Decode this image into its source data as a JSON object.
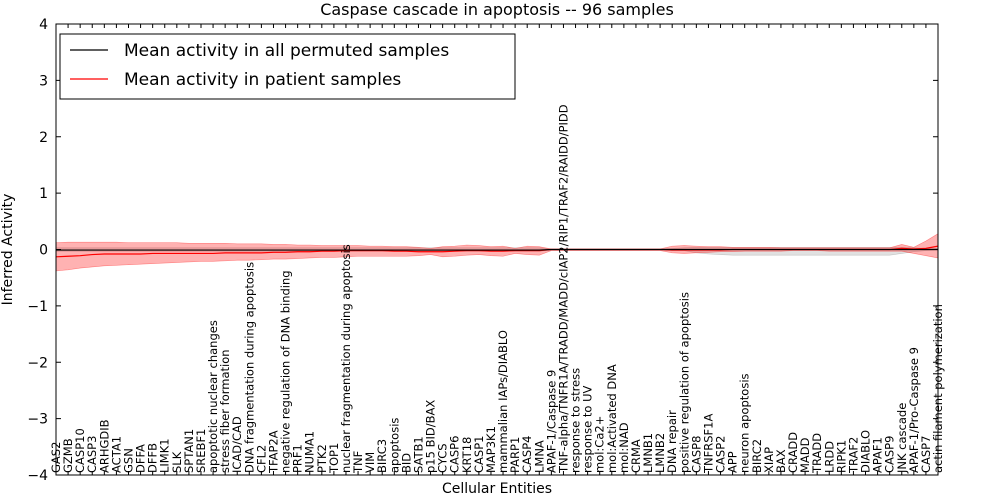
{
  "chart_data": {
    "type": "line",
    "title": "Caspase cascade in apoptosis -- 96 samples",
    "xlabel": "Cellular Entities",
    "ylabel": "Inferred Activity",
    "ylim": [
      -4,
      4
    ],
    "yticks": [
      -4,
      -3,
      -2,
      -1,
      0,
      1,
      2,
      3,
      4
    ],
    "ytick_labels": [
      "−4",
      "−3",
      "−2",
      "−1",
      "0",
      "1",
      "2",
      "3",
      "4"
    ],
    "grid": false,
    "legend_position": "top-left",
    "categories": [
      "GAS2",
      "GZMB",
      "CASP10",
      "CASP3",
      "ARHGDIB",
      "ACTA1",
      "GSN",
      "DFFA",
      "DFFB",
      "LIMK1",
      "SLK",
      "SPTAN1",
      "SREBF1",
      "apoptotic nuclear changes",
      "stress fiber formation",
      "ICAD/CAD",
      "DNA fragmentation during apoptosis",
      "CFL2",
      "TFAP2A",
      "negative regulation of DNA binding",
      "PRF1",
      "NUMA1",
      "PTK2",
      "TOP1",
      "nuclear fragmentation during apoptosis",
      "TNF",
      "VIM",
      "BIRC3",
      "apoptosis",
      "BID",
      "SATB1",
      "p15 BID/BAX",
      "CYCS",
      "CASP6",
      "KRT18",
      "CASP1",
      "MAP3K1",
      "mammalian IAPs/DIABLO",
      "PARP1",
      "CASP4",
      "LMNA",
      "APAF-1/Caspase 9",
      "TNF-alpha/TNFR1A/TRADD/MADD/cIAP2/RIP1/TRAF2/RAIDD/PIDD",
      "response to stress",
      "response to UV",
      "mol:Ca2+",
      "mol:Activated DNA",
      "mol:NAD",
      "CRMA",
      "LMNB1",
      "LMNB2",
      "DNA repair",
      "positive regulation of apoptosis",
      "CASP8",
      "TNFRSF1A",
      "CASP2",
      "APP",
      "neuron apoptosis",
      "BIRC2",
      "XIAP",
      "BAX",
      "CRADD",
      "MADD",
      "TRADD",
      "LRDD",
      "RIPK1",
      "TRAF2",
      "DIABLO",
      "APAF1",
      "CASP9",
      "JNK cascade",
      "APAF-1/Pro-Caspase 9",
      "CASP7",
      "actin filament polymerization"
    ],
    "series": [
      {
        "name": "Mean activity in all permuted samples",
        "color": "#000000",
        "values": [
          -0.01,
          -0.01,
          -0.01,
          -0.01,
          -0.01,
          -0.01,
          -0.01,
          -0.01,
          -0.01,
          -0.01,
          -0.01,
          -0.01,
          -0.01,
          -0.01,
          -0.01,
          -0.01,
          -0.01,
          -0.01,
          -0.01,
          -0.01,
          -0.01,
          -0.01,
          -0.01,
          -0.01,
          -0.01,
          -0.01,
          -0.01,
          -0.01,
          -0.01,
          -0.01,
          -0.01,
          -0.01,
          -0.01,
          -0.01,
          -0.01,
          -0.01,
          -0.01,
          -0.01,
          -0.01,
          -0.01,
          -0.01,
          0,
          0,
          0,
          0,
          0,
          0,
          0,
          0,
          0,
          0,
          0,
          0,
          0,
          0,
          0,
          0,
          0,
          0,
          0,
          0,
          0,
          0,
          0,
          0,
          0,
          0,
          0,
          0,
          0,
          0,
          0,
          0,
          0
        ],
        "lower": [
          -0.03,
          -0.03,
          -0.03,
          -0.03,
          -0.03,
          -0.03,
          -0.03,
          -0.03,
          -0.03,
          -0.03,
          -0.03,
          -0.03,
          -0.03,
          -0.03,
          -0.03,
          -0.03,
          -0.03,
          -0.03,
          -0.03,
          -0.03,
          -0.03,
          -0.03,
          -0.03,
          -0.03,
          -0.03,
          -0.03,
          -0.03,
          -0.03,
          -0.03,
          -0.03,
          -0.03,
          -0.03,
          -0.03,
          -0.03,
          -0.03,
          -0.03,
          -0.03,
          -0.03,
          -0.03,
          -0.03,
          -0.03,
          -0.01,
          -0.01,
          -0.01,
          -0.01,
          -0.01,
          -0.01,
          -0.01,
          -0.01,
          -0.01,
          -0.01,
          -0.02,
          -0.02,
          -0.06,
          -0.08,
          -0.09,
          -0.1,
          -0.1,
          -0.1,
          -0.1,
          -0.1,
          -0.1,
          -0.1,
          -0.1,
          -0.1,
          -0.1,
          -0.1,
          -0.1,
          -0.1,
          -0.1,
          -0.07,
          -0.04,
          -0.02,
          -0.01
        ],
        "upper": [
          0.03,
          0.03,
          0.03,
          0.03,
          0.03,
          0.03,
          0.03,
          0.03,
          0.03,
          0.03,
          0.03,
          0.03,
          0.03,
          0.03,
          0.03,
          0.03,
          0.03,
          0.03,
          0.03,
          0.03,
          0.03,
          0.03,
          0.03,
          0.03,
          0.03,
          0.03,
          0.03,
          0.03,
          0.03,
          0.03,
          0.03,
          0.03,
          0.03,
          0.03,
          0.03,
          0.03,
          0.03,
          0.03,
          0.03,
          0.03,
          0.03,
          0.01,
          0.01,
          0.01,
          0.01,
          0.01,
          0.01,
          0.01,
          0.01,
          0.01,
          0.01,
          0.02,
          0.03,
          0.04,
          0.04,
          0.04,
          0.04,
          0.04,
          0.04,
          0.04,
          0.04,
          0.04,
          0.04,
          0.04,
          0.04,
          0.04,
          0.04,
          0.04,
          0.04,
          0.04,
          0.04,
          0.03,
          0.02,
          0.02
        ]
      },
      {
        "name": "Mean activity in patient samples",
        "color": "#ff0000",
        "values": [
          -0.13,
          -0.12,
          -0.11,
          -0.09,
          -0.08,
          -0.08,
          -0.08,
          -0.08,
          -0.07,
          -0.07,
          -0.07,
          -0.07,
          -0.07,
          -0.07,
          -0.06,
          -0.06,
          -0.06,
          -0.06,
          -0.05,
          -0.05,
          -0.04,
          -0.04,
          -0.03,
          -0.03,
          -0.02,
          -0.02,
          -0.02,
          -0.02,
          -0.03,
          -0.03,
          -0.04,
          -0.04,
          -0.04,
          -0.03,
          -0.02,
          -0.02,
          -0.03,
          -0.03,
          -0.02,
          -0.02,
          -0.02,
          0,
          0,
          0,
          0,
          0,
          0,
          0,
          0,
          0,
          0,
          -0.01,
          -0.01,
          -0.01,
          -0.01,
          -0.01,
          0,
          0,
          0,
          0,
          0,
          0,
          0,
          0,
          0,
          0,
          0,
          0,
          0,
          0,
          0.02,
          0.01,
          0.02,
          0.06
        ],
        "lower": [
          -0.38,
          -0.36,
          -0.33,
          -0.31,
          -0.29,
          -0.28,
          -0.27,
          -0.26,
          -0.25,
          -0.24,
          -0.23,
          -0.22,
          -0.21,
          -0.21,
          -0.2,
          -0.19,
          -0.19,
          -0.18,
          -0.17,
          -0.17,
          -0.16,
          -0.15,
          -0.14,
          -0.14,
          -0.13,
          -0.12,
          -0.12,
          -0.12,
          -0.12,
          -0.12,
          -0.11,
          -0.09,
          -0.13,
          -0.12,
          -0.1,
          -0.09,
          -0.11,
          -0.12,
          -0.07,
          -0.09,
          -0.1,
          -0.02,
          -0.02,
          -0.02,
          -0.02,
          -0.02,
          -0.02,
          -0.02,
          -0.02,
          -0.02,
          -0.02,
          -0.06,
          -0.07,
          -0.06,
          -0.05,
          -0.04,
          -0.04,
          -0.03,
          -0.03,
          -0.03,
          -0.03,
          -0.02,
          -0.02,
          -0.02,
          -0.03,
          -0.03,
          -0.03,
          -0.03,
          -0.03,
          -0.03,
          -0.03,
          -0.07,
          -0.11,
          -0.15
        ],
        "upper": [
          0.12,
          0.13,
          0.13,
          0.13,
          0.13,
          0.13,
          0.12,
          0.12,
          0.12,
          0.12,
          0.12,
          0.11,
          0.11,
          0.11,
          0.11,
          0.1,
          0.1,
          0.1,
          0.09,
          0.09,
          0.08,
          0.08,
          0.07,
          0.07,
          0.07,
          0.07,
          0.06,
          0.06,
          0.05,
          0.05,
          0.04,
          0.02,
          0.05,
          0.06,
          0.08,
          0.07,
          0.05,
          0.06,
          0.02,
          0.06,
          0.05,
          0.01,
          0.01,
          0.01,
          0.01,
          0.01,
          0.01,
          0.01,
          0.01,
          0.01,
          0.01,
          0.06,
          0.07,
          0.06,
          0.05,
          0.05,
          0.04,
          0.04,
          0.04,
          0.04,
          0.03,
          0.03,
          0.03,
          0.03,
          0.03,
          0.03,
          0.03,
          0.03,
          0.03,
          0.03,
          0.09,
          0.04,
          0.15,
          0.28
        ]
      }
    ]
  }
}
